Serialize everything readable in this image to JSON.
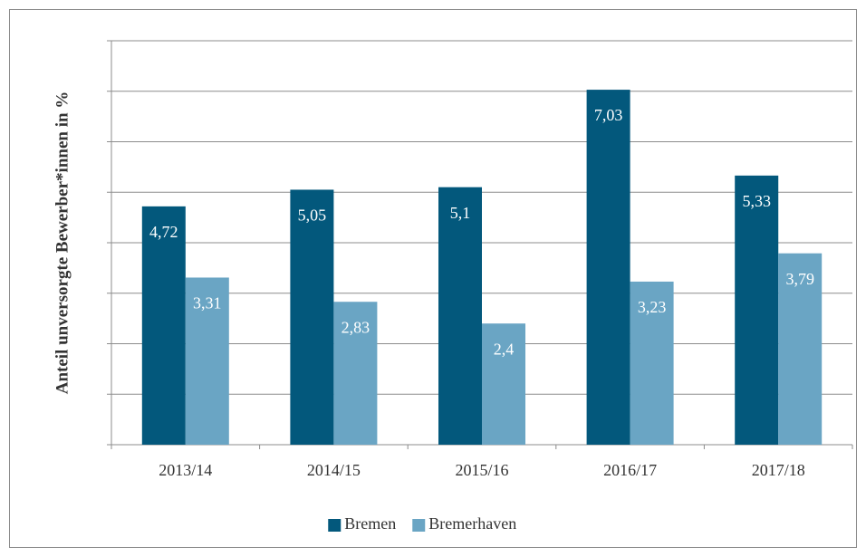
{
  "chart_data": {
    "type": "bar",
    "y_label": "Anteil unversorgte Bewerber*innen in %",
    "categories": [
      "2013/14",
      "2014/15",
      "2015/16",
      "2016/17",
      "2017/18"
    ],
    "series": [
      {
        "name": "Bremen",
        "color": "#03587c",
        "values": [
          4.72,
          5.05,
          5.1,
          7.03,
          5.33
        ],
        "value_labels": [
          "4,72",
          "5,05",
          "5,1",
          "7,03",
          "5,33"
        ]
      },
      {
        "name": "Bremerhaven",
        "color": "#6aa5c4",
        "values": [
          3.31,
          2.83,
          2.4,
          3.23,
          3.79
        ],
        "value_labels": [
          "3,31",
          "2,83",
          "2,4",
          "3,23",
          "3,79"
        ]
      }
    ],
    "ylim": [
      0,
      8
    ],
    "yticks": [
      0,
      1,
      2,
      3,
      4,
      5,
      6,
      7,
      8
    ],
    "grid": true,
    "legend": "bottom"
  }
}
